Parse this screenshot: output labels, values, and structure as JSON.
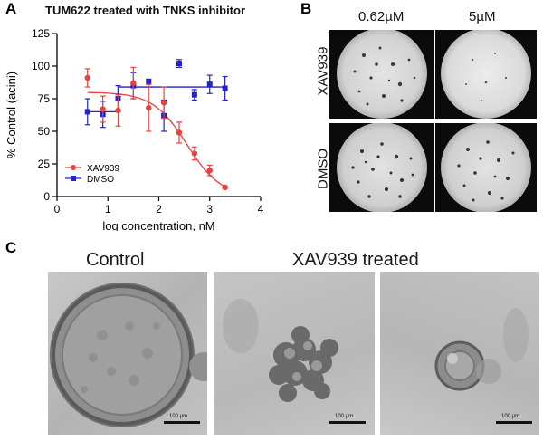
{
  "panel_a": {
    "letter": "A",
    "title": "TUM622 treated with TNKS inhibitor"
  },
  "panel_b": {
    "letter": "B",
    "columns": [
      "0.62µM",
      "5µM"
    ],
    "rows": [
      "XAV939",
      "DMSO"
    ]
  },
  "panel_c": {
    "letter": "C",
    "label_control": "Control",
    "label_treated": "XAV939  treated",
    "scale_bars": [
      "100 µm",
      "100 µm",
      "100 µm"
    ]
  },
  "colors": {
    "xav939": "#e8413f",
    "dmso": "#2222cc"
  },
  "chart_data": {
    "type": "scatter",
    "xlabel": "log concentration, nM",
    "ylabel": "% Control (acini)",
    "xlim": [
      0,
      4
    ],
    "ylim": [
      0,
      125
    ],
    "xticks": [
      0,
      1,
      2,
      3,
      4
    ],
    "yticks": [
      0,
      25,
      50,
      75,
      100,
      125
    ],
    "legend_position": "lower-left",
    "series": [
      {
        "name": "XAV939",
        "marker": "circle",
        "x": [
          0.6,
          0.9,
          1.2,
          1.5,
          1.8,
          2.1,
          2.4,
          2.7,
          3.0,
          3.3
        ],
        "y": [
          91,
          67,
          66,
          87,
          68,
          72,
          49,
          33,
          20,
          7
        ],
        "err": [
          7,
          10,
          12,
          12,
          18,
          12,
          8,
          5,
          4,
          1
        ],
        "fit": {
          "top": 80,
          "bottom": 0,
          "logIC50": 2.55,
          "hill": -1.3,
          "x_range": [
            0.6,
            3.3
          ]
        }
      },
      {
        "name": "DMSO",
        "marker": "square",
        "x": [
          0.6,
          0.9,
          1.2,
          1.5,
          1.8,
          2.1,
          2.4,
          2.7,
          3.0,
          3.3
        ],
        "y": [
          65,
          63,
          75,
          85,
          88,
          62,
          102,
          78,
          86,
          83
        ],
        "err": [
          10,
          10,
          10,
          10,
          2,
          12,
          3,
          4,
          7,
          9
        ],
        "fit": {
          "type": "step",
          "y1": 65,
          "y2": 84,
          "x_step": 1.2,
          "x_range": [
            0.6,
            3.3
          ]
        }
      }
    ]
  }
}
